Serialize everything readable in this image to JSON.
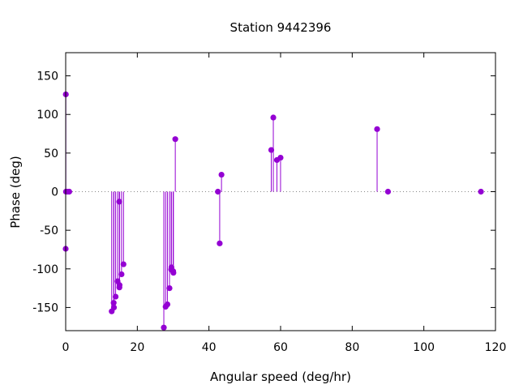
{
  "chart_data": {
    "type": "scatter",
    "style": "impulses-with-points",
    "title": "Station 9442396",
    "xlabel": "Angular speed (deg/hr)",
    "ylabel": "Phase (deg)",
    "xlim": [
      0,
      120
    ],
    "ylim": [
      -180,
      180
    ],
    "xticks": [
      0,
      20,
      40,
      60,
      80,
      100,
      120
    ],
    "yticks": [
      -150,
      -100,
      -50,
      0,
      50,
      100,
      150
    ],
    "grid": false,
    "legend": "none",
    "zero_line": "dotted",
    "series": [
      {
        "color": "#9400d3",
        "points": [
          {
            "x": 0.0,
            "y": -74
          },
          {
            "x": 0.04,
            "y": 126
          },
          {
            "x": 0.08,
            "y": 0
          },
          {
            "x": 0.5,
            "y": 0
          },
          {
            "x": 1.0,
            "y": 0
          },
          {
            "x": 12.85,
            "y": -155
          },
          {
            "x": 13.4,
            "y": -144
          },
          {
            "x": 13.47,
            "y": -150
          },
          {
            "x": 13.94,
            "y": -136
          },
          {
            "x": 14.49,
            "y": -116
          },
          {
            "x": 14.96,
            "y": -13
          },
          {
            "x": 15.0,
            "y": -124
          },
          {
            "x": 15.04,
            "y": -121
          },
          {
            "x": 15.59,
            "y": -107
          },
          {
            "x": 16.14,
            "y": -94
          },
          {
            "x": 27.4,
            "y": -176
          },
          {
            "x": 27.9,
            "y": -149
          },
          {
            "x": 28.4,
            "y": -146
          },
          {
            "x": 28.98,
            "y": -125
          },
          {
            "x": 29.46,
            "y": -101
          },
          {
            "x": 29.53,
            "y": -98
          },
          {
            "x": 30.0,
            "y": -103
          },
          {
            "x": 30.08,
            "y": -105
          },
          {
            "x": 30.6,
            "y": 68
          },
          {
            "x": 42.5,
            "y": 0
          },
          {
            "x": 43.0,
            "y": -67
          },
          {
            "x": 43.5,
            "y": 22
          },
          {
            "x": 57.4,
            "y": 54
          },
          {
            "x": 57.97,
            "y": 96
          },
          {
            "x": 58.98,
            "y": 41
          },
          {
            "x": 59.99,
            "y": 44
          },
          {
            "x": 86.95,
            "y": 81
          },
          {
            "x": 89.99,
            "y": 0
          },
          {
            "x": 115.94,
            "y": 0
          }
        ]
      }
    ]
  }
}
